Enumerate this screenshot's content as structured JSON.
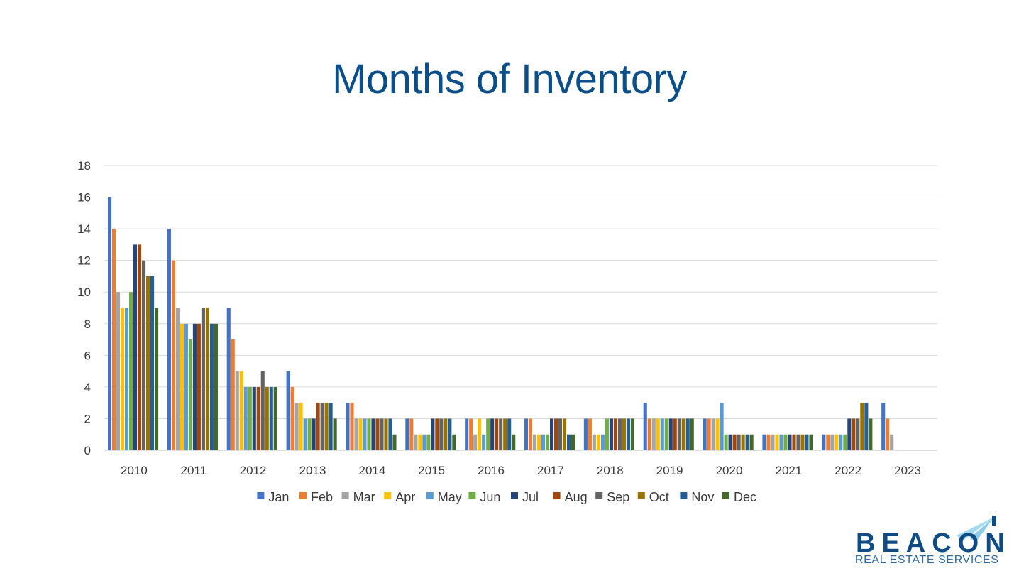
{
  "title": "Months of Inventory",
  "logo": {
    "word": "BEACON",
    "subtitle": "REAL ESTATE SERVICES"
  },
  "chart_data": {
    "type": "bar",
    "title": "Months of Inventory",
    "xlabel": "",
    "ylabel": "",
    "ylim": [
      0,
      18
    ],
    "yticks": [
      0,
      2,
      4,
      6,
      8,
      10,
      12,
      14,
      16,
      18
    ],
    "grid": true,
    "legend_position": "bottom",
    "categories": [
      "2010",
      "2011",
      "2012",
      "2013",
      "2014",
      "2015",
      "2016",
      "2017",
      "2018",
      "2019",
      "2020",
      "2021",
      "2022",
      "2023"
    ],
    "series": [
      {
        "name": "Jan",
        "color": "#4472c4",
        "values": [
          16,
          14,
          9,
          5,
          3,
          2,
          2,
          2,
          2,
          3,
          2,
          1,
          1,
          3
        ]
      },
      {
        "name": "Feb",
        "color": "#ed7d31",
        "values": [
          14,
          12,
          7,
          4,
          3,
          2,
          2,
          2,
          2,
          2,
          2,
          1,
          1,
          2
        ]
      },
      {
        "name": "Mar",
        "color": "#a5a5a5",
        "values": [
          10,
          9,
          5,
          3,
          2,
          1,
          1,
          1,
          1,
          2,
          2,
          1,
          1,
          1
        ]
      },
      {
        "name": "Apr",
        "color": "#ffc000",
        "values": [
          9,
          8,
          5,
          3,
          2,
          1,
          2,
          1,
          1,
          2,
          2,
          1,
          1,
          null
        ]
      },
      {
        "name": "May",
        "color": "#5b9bd5",
        "values": [
          9,
          8,
          4,
          2,
          2,
          1,
          1,
          1,
          1,
          2,
          3,
          1,
          1,
          null
        ]
      },
      {
        "name": "Jun",
        "color": "#70ad47",
        "values": [
          10,
          7,
          4,
          2,
          2,
          1,
          2,
          1,
          2,
          2,
          1,
          1,
          1,
          null
        ]
      },
      {
        "name": "Jul",
        "color": "#264478",
        "values": [
          13,
          8,
          4,
          2,
          2,
          2,
          2,
          2,
          2,
          2,
          1,
          1,
          2,
          null
        ]
      },
      {
        "name": "Aug",
        "color": "#9e480e",
        "values": [
          13,
          8,
          4,
          3,
          2,
          2,
          2,
          2,
          2,
          2,
          1,
          1,
          2,
          null
        ]
      },
      {
        "name": "Sep",
        "color": "#636363",
        "values": [
          12,
          9,
          5,
          3,
          2,
          2,
          2,
          2,
          2,
          2,
          1,
          1,
          2,
          null
        ]
      },
      {
        "name": "Oct",
        "color": "#997300",
        "values": [
          11,
          9,
          4,
          3,
          2,
          2,
          2,
          2,
          2,
          2,
          1,
          1,
          3,
          null
        ]
      },
      {
        "name": "Nov",
        "color": "#255e91",
        "values": [
          11,
          8,
          4,
          3,
          2,
          2,
          2,
          1,
          2,
          2,
          1,
          1,
          3,
          null
        ]
      },
      {
        "name": "Dec",
        "color": "#43682b",
        "values": [
          9,
          8,
          4,
          2,
          1,
          1,
          1,
          1,
          2,
          2,
          1,
          1,
          2,
          null
        ]
      }
    ]
  }
}
